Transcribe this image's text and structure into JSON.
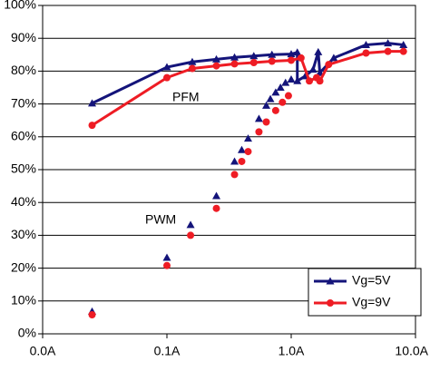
{
  "chart_data": {
    "type": "line",
    "xscale": "log",
    "grid": true,
    "legend": "lower right",
    "annotations": [
      {
        "text": "PFM"
      },
      {
        "text": "PWM"
      }
    ],
    "xlim": [
      0.01,
      10
    ],
    "xticks": [
      {
        "value": 0.01,
        "label": "0.0A"
      },
      {
        "value": 0.1,
        "label": "0.1A"
      },
      {
        "value": 1,
        "label": "1.0A"
      },
      {
        "value": 10,
        "label": "10.0A"
      }
    ],
    "ylim": [
      0,
      100
    ],
    "yticks": [
      {
        "value": 0,
        "label": "0%"
      },
      {
        "value": 10,
        "label": "10%"
      },
      {
        "value": 20,
        "label": "20%"
      },
      {
        "value": 30,
        "label": "30%"
      },
      {
        "value": 40,
        "label": "40%"
      },
      {
        "value": 50,
        "label": "50%"
      },
      {
        "value": 60,
        "label": "60%"
      },
      {
        "value": 70,
        "label": "70%"
      },
      {
        "value": 80,
        "label": "80%"
      },
      {
        "value": 90,
        "label": "90%"
      },
      {
        "value": 100,
        "label": "100%"
      }
    ],
    "series": [
      {
        "name": "Vg=5V",
        "color": "#14147a",
        "marker": "triangle",
        "x": [
          0.025,
          0.1,
          0.16,
          0.25,
          0.35,
          0.5,
          0.7,
          1.0,
          1.12,
          1.12,
          1.3,
          1.5,
          1.65,
          1.7,
          2.2,
          4,
          6,
          8,
          null,
          0.025,
          null,
          0.1,
          null,
          0.155,
          null,
          0.25,
          null,
          0.35,
          null,
          0.4,
          null,
          0.45,
          null,
          0.55,
          null,
          0.63,
          null,
          0.68,
          null,
          0.75,
          null,
          0.82,
          null,
          0.9,
          null,
          1.0
        ],
        "values": [
          70.2,
          81.2,
          82.8,
          83.6,
          84.2,
          84.6,
          85,
          85.2,
          85.7,
          77,
          78.5,
          80.5,
          85.8,
          79.5,
          84,
          88,
          88.5,
          88,
          null,
          6.8,
          null,
          23.2,
          null,
          33.2,
          null,
          42,
          null,
          52.5,
          null,
          56,
          null,
          59.5,
          null,
          65.5,
          null,
          69.5,
          null,
          71.5,
          null,
          73.5,
          null,
          75,
          null,
          76.5,
          null,
          77.5
        ]
      },
      {
        "name": "Vg=9V",
        "color": "#ee1c24",
        "marker": "circle",
        "x": [
          0.025,
          0.1,
          0.16,
          0.25,
          0.35,
          0.5,
          0.7,
          1.0,
          1.2,
          1.4,
          1.6,
          1.7,
          2.0,
          4,
          6,
          8,
          null,
          0.025,
          null,
          0.1,
          null,
          0.155,
          null,
          0.25,
          null,
          0.35,
          null,
          0.4,
          null,
          0.45,
          null,
          0.55,
          null,
          0.63,
          null,
          0.75,
          null,
          0.85,
          null,
          0.95
        ],
        "values": [
          63.5,
          78,
          80.8,
          81.6,
          82.2,
          82.6,
          83,
          83.3,
          84,
          77,
          78,
          77,
          82,
          85.5,
          86,
          86,
          null,
          5.8,
          null,
          20.8,
          null,
          30,
          null,
          38.2,
          null,
          48.5,
          null,
          52.5,
          null,
          55.5,
          null,
          61.5,
          null,
          64.5,
          null,
          68,
          null,
          70.5,
          null,
          72.5
        ]
      }
    ]
  }
}
